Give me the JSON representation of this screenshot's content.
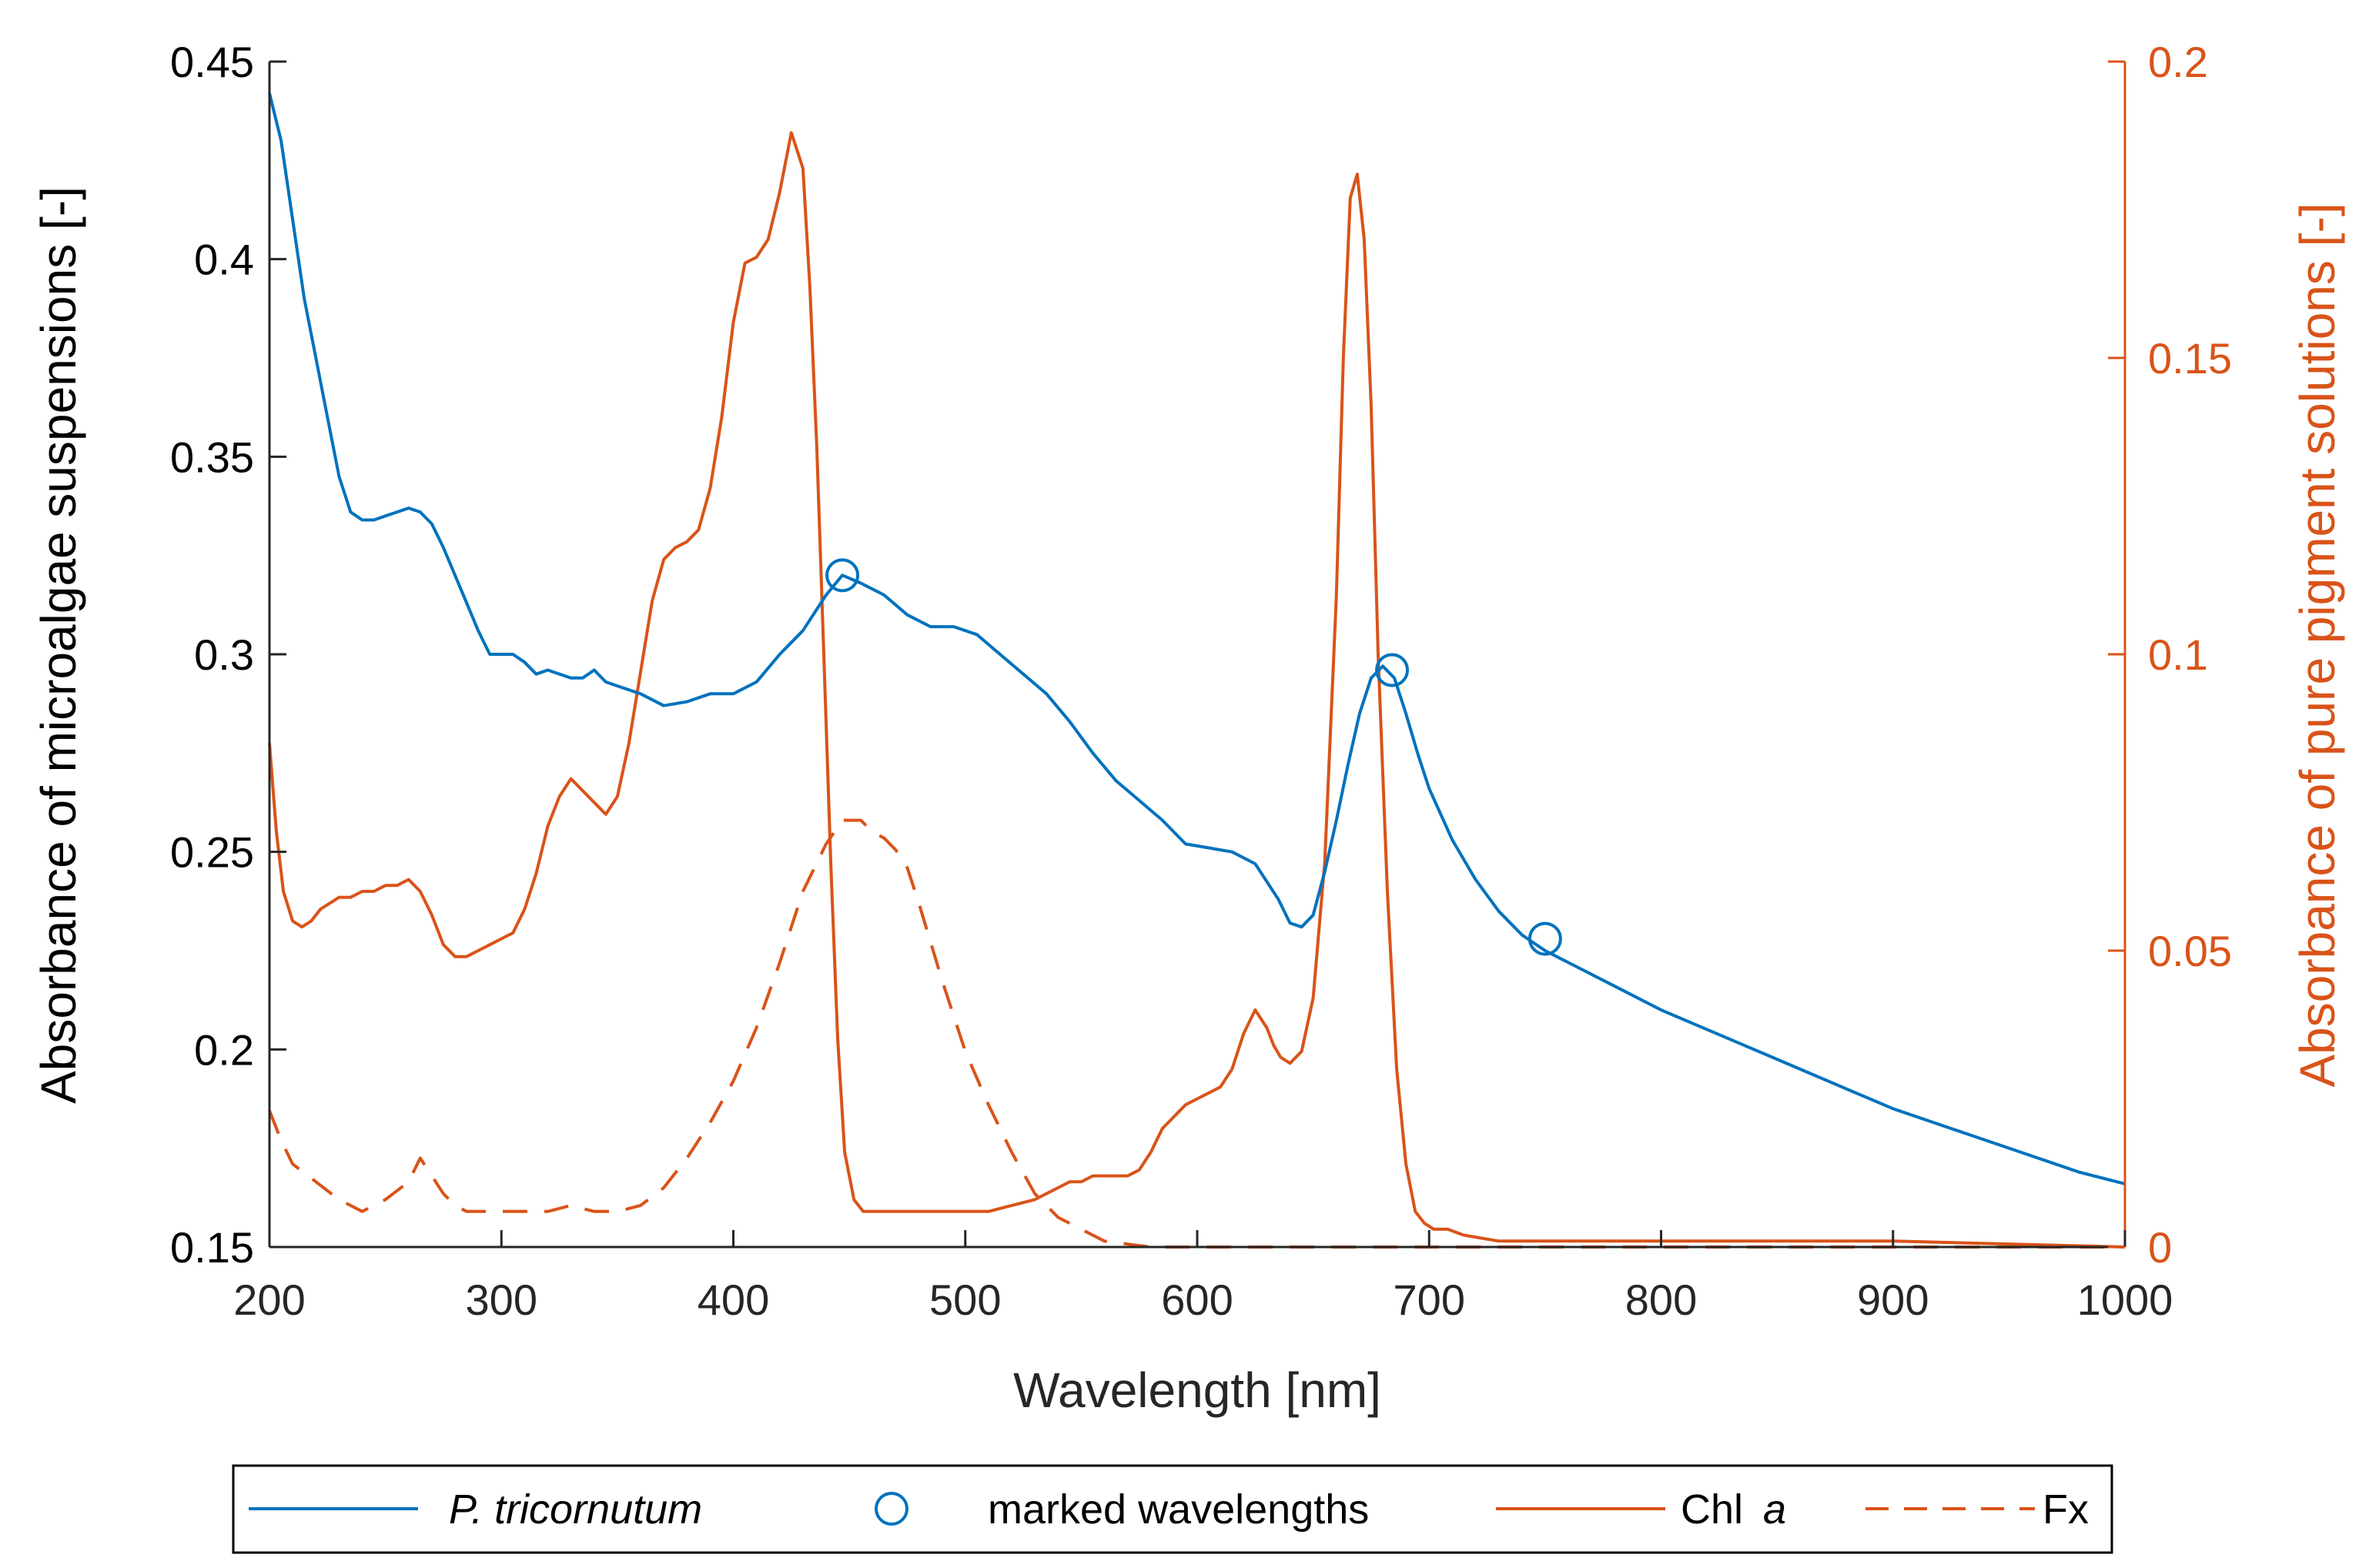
{
  "chart_data": {
    "type": "line",
    "title": "",
    "xlabel": "Wavelength [nm]",
    "ylabel_left": "Absorbance of microalgae suspensions [-]",
    "ylabel_right": "Absorbance of pure pigment solutions [-]",
    "xlim": [
      200,
      1000
    ],
    "ylim_left": [
      0.15,
      0.45
    ],
    "ylim_right": [
      0,
      0.2
    ],
    "x_ticks": [
      200,
      300,
      400,
      500,
      600,
      700,
      800,
      900,
      1000
    ],
    "x_tick_labels": [
      "200",
      "300",
      "400",
      "500",
      "600",
      "700",
      "800",
      "900",
      "1000"
    ],
    "y_left_ticks": [
      0.15,
      0.2,
      0.25,
      0.3,
      0.35,
      0.4,
      0.45
    ],
    "y_left_tick_labels": [
      "0.15",
      "0.2",
      "0.25",
      "0.3",
      "0.35",
      "0.4",
      "0.45"
    ],
    "y_right_ticks": [
      0,
      0.05,
      0.1,
      0.15,
      0.2
    ],
    "y_right_tick_labels": [
      "0",
      "0.05",
      "0.1",
      "0.15",
      "0.2"
    ],
    "grid": false,
    "legend_position": "bottom-outside",
    "colors": {
      "blue": "#0072BD",
      "orange": "#D95319",
      "axis_left": "#262626",
      "axis_right": "#D95319"
    },
    "series": [
      {
        "name": "P. tricornutum",
        "axis": "left",
        "style": "solid",
        "color": "#0072BD",
        "x": [
          200,
          205,
          210,
          215,
          220,
          225,
          230,
          235,
          240,
          245,
          250,
          255,
          260,
          265,
          270,
          275,
          280,
          285,
          290,
          295,
          300,
          305,
          310,
          315,
          320,
          330,
          335,
          340,
          345,
          350,
          360,
          370,
          380,
          390,
          400,
          410,
          420,
          430,
          440,
          447,
          455,
          465,
          475,
          485,
          495,
          505,
          515,
          525,
          535,
          545,
          555,
          565,
          575,
          585,
          595,
          605,
          615,
          625,
          635,
          640,
          645,
          650,
          655,
          660,
          665,
          670,
          675,
          680,
          685,
          690,
          695,
          700,
          710,
          720,
          730,
          740,
          750,
          760,
          780,
          800,
          820,
          840,
          860,
          880,
          900,
          920,
          940,
          960,
          980,
          1000
        ],
        "y": [
          0.442,
          0.43,
          0.41,
          0.39,
          0.375,
          0.36,
          0.345,
          0.336,
          0.334,
          0.334,
          0.335,
          0.336,
          0.337,
          0.336,
          0.333,
          0.327,
          0.32,
          0.313,
          0.306,
          0.3,
          0.3,
          0.3,
          0.298,
          0.295,
          0.296,
          0.294,
          0.294,
          0.296,
          0.293,
          0.292,
          0.29,
          0.287,
          0.288,
          0.29,
          0.29,
          0.293,
          0.3,
          0.306,
          0.315,
          0.32,
          0.318,
          0.315,
          0.31,
          0.307,
          0.307,
          0.305,
          0.3,
          0.295,
          0.29,
          0.283,
          0.275,
          0.268,
          0.263,
          0.258,
          0.252,
          0.251,
          0.25,
          0.247,
          0.238,
          0.232,
          0.231,
          0.234,
          0.245,
          0.258,
          0.272,
          0.285,
          0.294,
          0.297,
          0.294,
          0.285,
          0.275,
          0.266,
          0.253,
          0.243,
          0.235,
          0.229,
          0.225,
          0.222,
          0.216,
          0.21,
          0.205,
          0.2,
          0.195,
          0.19,
          0.185,
          0.181,
          0.177,
          0.173,
          0.169,
          0.166
        ]
      },
      {
        "name": "marked wavelengths",
        "axis": "left",
        "style": "marker-circle",
        "color": "#0072BD",
        "x": [
          447,
          684,
          750
        ],
        "y": [
          0.32,
          0.296,
          0.228
        ]
      },
      {
        "name": "Chl a",
        "axis": "right",
        "style": "solid",
        "color": "#D95319",
        "x": [
          200,
          203,
          206,
          210,
          214,
          218,
          222,
          226,
          230,
          235,
          240,
          245,
          250,
          255,
          260,
          265,
          270,
          275,
          280,
          285,
          290,
          295,
          300,
          305,
          310,
          315,
          320,
          325,
          330,
          335,
          340,
          345,
          350,
          355,
          360,
          365,
          370,
          375,
          380,
          385,
          390,
          395,
          400,
          405,
          410,
          415,
          420,
          425,
          430,
          433,
          436,
          439,
          442,
          445,
          448,
          452,
          456,
          460,
          465,
          470,
          480,
          490,
          500,
          510,
          520,
          530,
          540,
          545,
          550,
          555,
          560,
          565,
          570,
          575,
          580,
          585,
          590,
          595,
          600,
          605,
          610,
          615,
          620,
          625,
          630,
          633,
          636,
          640,
          645,
          650,
          655,
          660,
          663,
          666,
          669,
          672,
          675,
          678,
          682,
          686,
          690,
          694,
          698,
          702,
          708,
          715,
          730,
          750,
          800,
          900,
          1000
        ],
        "y": [
          0.085,
          0.07,
          0.06,
          0.055,
          0.054,
          0.055,
          0.057,
          0.058,
          0.059,
          0.059,
          0.06,
          0.06,
          0.061,
          0.061,
          0.062,
          0.06,
          0.056,
          0.051,
          0.049,
          0.049,
          0.05,
          0.051,
          0.052,
          0.053,
          0.057,
          0.063,
          0.071,
          0.076,
          0.079,
          0.077,
          0.075,
          0.073,
          0.076,
          0.085,
          0.097,
          0.109,
          0.116,
          0.118,
          0.119,
          0.121,
          0.128,
          0.14,
          0.156,
          0.166,
          0.167,
          0.17,
          0.178,
          0.188,
          0.182,
          0.162,
          0.135,
          0.1,
          0.065,
          0.035,
          0.016,
          0.008,
          0.006,
          0.006,
          0.006,
          0.006,
          0.006,
          0.006,
          0.006,
          0.006,
          0.007,
          0.008,
          0.01,
          0.011,
          0.011,
          0.012,
          0.012,
          0.012,
          0.012,
          0.013,
          0.016,
          0.02,
          0.022,
          0.024,
          0.025,
          0.026,
          0.027,
          0.03,
          0.036,
          0.04,
          0.037,
          0.034,
          0.032,
          0.031,
          0.033,
          0.042,
          0.065,
          0.11,
          0.15,
          0.177,
          0.181,
          0.17,
          0.142,
          0.1,
          0.06,
          0.03,
          0.014,
          0.006,
          0.004,
          0.003,
          0.003,
          0.002,
          0.001,
          0.001,
          0.001,
          0.001,
          0
        ]
      },
      {
        "name": "Fx",
        "axis": "right",
        "style": "dashed",
        "color": "#D95319",
        "x": [
          200,
          205,
          210,
          220,
          230,
          240,
          250,
          260,
          265,
          270,
          275,
          280,
          285,
          290,
          300,
          310,
          320,
          330,
          340,
          350,
          360,
          370,
          380,
          390,
          400,
          410,
          420,
          430,
          440,
          447,
          455,
          460,
          465,
          470,
          475,
          480,
          490,
          500,
          510,
          520,
          530,
          540,
          550,
          560,
          570,
          580,
          600,
          650,
          700,
          800,
          900,
          1000
        ],
        "y": [
          0.023,
          0.018,
          0.014,
          0.011,
          0.008,
          0.006,
          0.008,
          0.011,
          0.015,
          0.012,
          0.009,
          0.007,
          0.006,
          0.006,
          0.006,
          0.006,
          0.006,
          0.007,
          0.006,
          0.006,
          0.007,
          0.01,
          0.015,
          0.021,
          0.028,
          0.037,
          0.048,
          0.06,
          0.068,
          0.072,
          0.072,
          0.07,
          0.069,
          0.067,
          0.064,
          0.058,
          0.045,
          0.033,
          0.024,
          0.016,
          0.009,
          0.005,
          0.003,
          0.001,
          0.0005,
          0,
          0,
          0,
          0,
          0,
          0,
          0
        ]
      }
    ]
  },
  "legend": {
    "p_tricornutum": "P. tricornutum",
    "marked": "marked wavelengths",
    "chl_main": "Chl",
    "chl_italic": "a",
    "fx": "Fx"
  }
}
